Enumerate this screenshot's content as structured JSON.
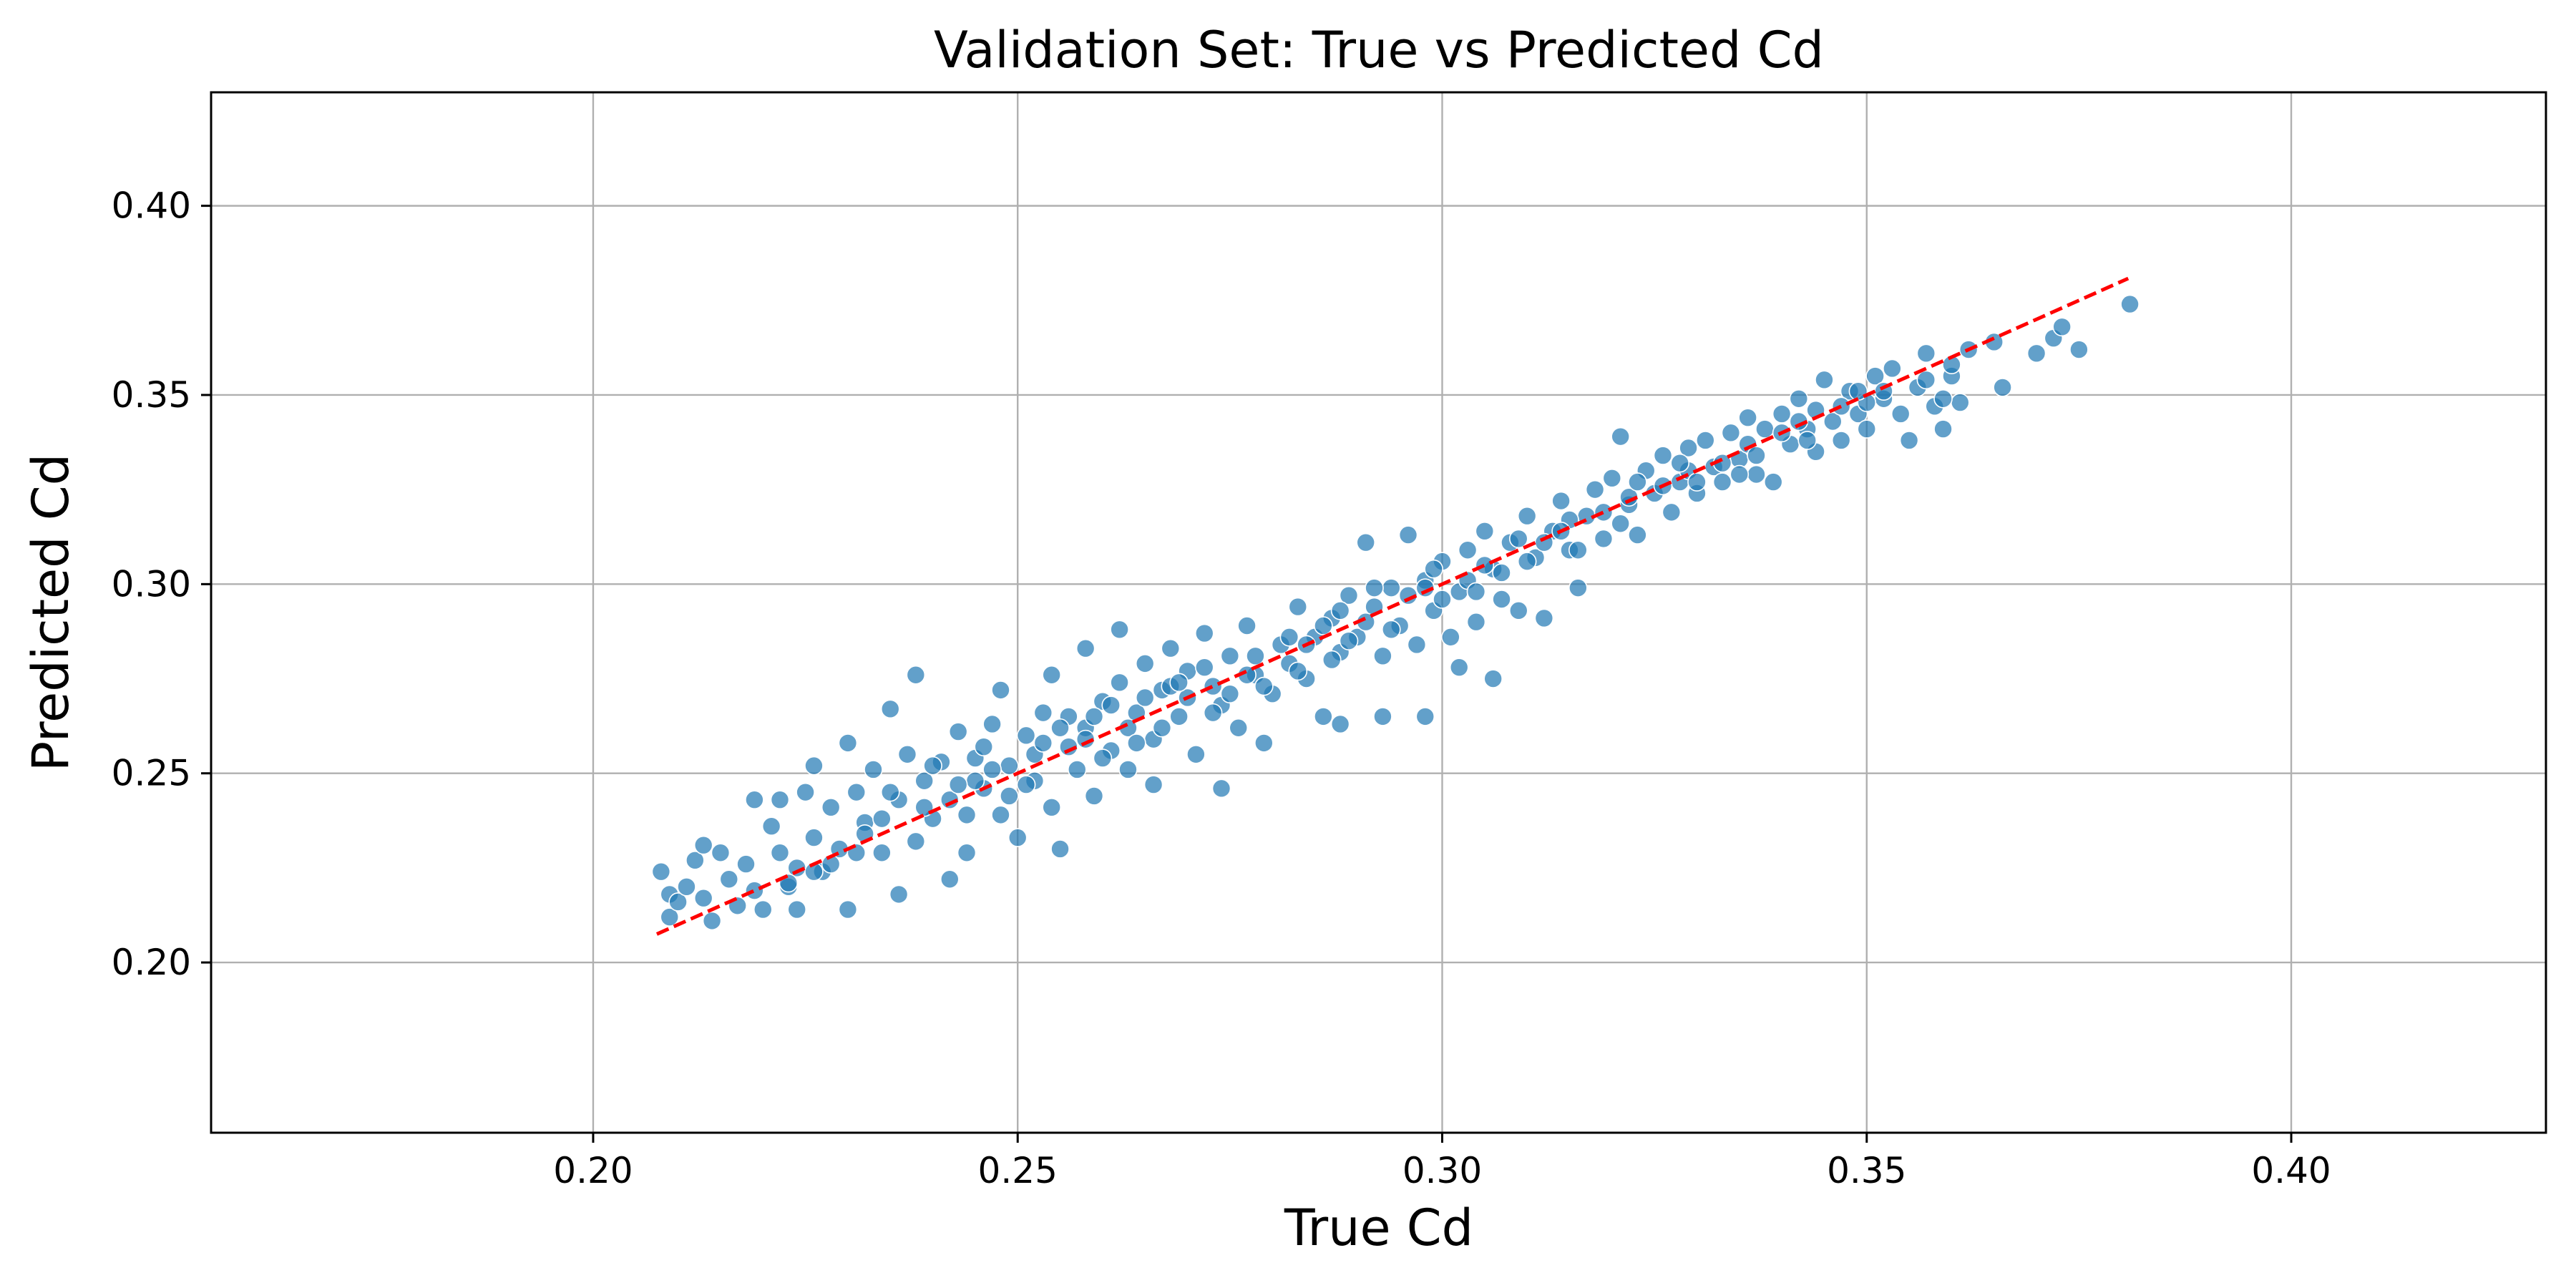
{
  "chart_data": {
    "type": "scatter",
    "title": "Validation Set: True vs Predicted Cd",
    "xlabel": "True Cd",
    "ylabel": "Predicted Cd",
    "xlim": [
      0.155,
      0.43
    ],
    "ylim": [
      0.155,
      0.43
    ],
    "xticks": [
      0.2,
      0.25,
      0.3,
      0.35,
      0.4
    ],
    "yticks": [
      0.2,
      0.25,
      0.3,
      0.35,
      0.4
    ],
    "xtick_labels": [
      "0.20",
      "0.25",
      "0.30",
      "0.35",
      "0.40"
    ],
    "ytick_labels": [
      "0.20",
      "0.25",
      "0.30",
      "0.35",
      "0.40"
    ],
    "grid": true,
    "reference_line": {
      "x": [
        0.2075,
        0.3808
      ],
      "y": [
        0.2075,
        0.3808
      ],
      "color": "#ff0000",
      "style": "dashed"
    },
    "series": [
      {
        "color": "#1f77b4",
        "points": [
          [
            0.208,
            0.224
          ],
          [
            0.209,
            0.218
          ],
          [
            0.209,
            0.212
          ],
          [
            0.21,
            0.216
          ],
          [
            0.211,
            0.22
          ],
          [
            0.212,
            0.227
          ],
          [
            0.213,
            0.231
          ],
          [
            0.213,
            0.217
          ],
          [
            0.214,
            0.211
          ],
          [
            0.215,
            0.229
          ],
          [
            0.216,
            0.222
          ],
          [
            0.217,
            0.215
          ],
          [
            0.218,
            0.226
          ],
          [
            0.219,
            0.243
          ],
          [
            0.219,
            0.219
          ],
          [
            0.22,
            0.214
          ],
          [
            0.221,
            0.236
          ],
          [
            0.222,
            0.243
          ],
          [
            0.222,
            0.229
          ],
          [
            0.223,
            0.22
          ],
          [
            0.224,
            0.225
          ],
          [
            0.224,
            0.214
          ],
          [
            0.225,
            0.245
          ],
          [
            0.226,
            0.233
          ],
          [
            0.226,
            0.252
          ],
          [
            0.227,
            0.224
          ],
          [
            0.228,
            0.241
          ],
          [
            0.229,
            0.23
          ],
          [
            0.23,
            0.214
          ],
          [
            0.23,
            0.258
          ],
          [
            0.231,
            0.245
          ],
          [
            0.232,
            0.237
          ],
          [
            0.233,
            0.251
          ],
          [
            0.234,
            0.229
          ],
          [
            0.235,
            0.267
          ],
          [
            0.236,
            0.218
          ],
          [
            0.236,
            0.243
          ],
          [
            0.237,
            0.255
          ],
          [
            0.238,
            0.276
          ],
          [
            0.238,
            0.232
          ],
          [
            0.239,
            0.248
          ],
          [
            0.24,
            0.238
          ],
          [
            0.241,
            0.253
          ],
          [
            0.242,
            0.222
          ],
          [
            0.243,
            0.261
          ],
          [
            0.244,
            0.239
          ],
          [
            0.244,
            0.229
          ],
          [
            0.245,
            0.254
          ],
          [
            0.246,
            0.246
          ],
          [
            0.247,
            0.263
          ],
          [
            0.248,
            0.239
          ],
          [
            0.248,
            0.272
          ],
          [
            0.249,
            0.252
          ],
          [
            0.25,
            0.233
          ],
          [
            0.251,
            0.26
          ],
          [
            0.252,
            0.248
          ],
          [
            0.253,
            0.266
          ],
          [
            0.254,
            0.276
          ],
          [
            0.254,
            0.241
          ],
          [
            0.255,
            0.23
          ],
          [
            0.256,
            0.257
          ],
          [
            0.257,
            0.251
          ],
          [
            0.258,
            0.283
          ],
          [
            0.258,
            0.262
          ],
          [
            0.259,
            0.244
          ],
          [
            0.26,
            0.269
          ],
          [
            0.261,
            0.256
          ],
          [
            0.262,
            0.288
          ],
          [
            0.262,
            0.274
          ],
          [
            0.263,
            0.251
          ],
          [
            0.264,
            0.266
          ],
          [
            0.265,
            0.279
          ],
          [
            0.266,
            0.259
          ],
          [
            0.266,
            0.247
          ],
          [
            0.267,
            0.272
          ],
          [
            0.268,
            0.283
          ],
          [
            0.269,
            0.265
          ],
          [
            0.27,
            0.277
          ],
          [
            0.271,
            0.255
          ],
          [
            0.272,
            0.287
          ],
          [
            0.273,
            0.273
          ],
          [
            0.274,
            0.246
          ],
          [
            0.274,
            0.268
          ],
          [
            0.275,
            0.281
          ],
          [
            0.276,
            0.262
          ],
          [
            0.277,
            0.289
          ],
          [
            0.278,
            0.276
          ],
          [
            0.279,
            0.258
          ],
          [
            0.28,
            0.271
          ],
          [
            0.281,
            0.284
          ],
          [
            0.282,
            0.279
          ],
          [
            0.283,
            0.294
          ],
          [
            0.284,
            0.275
          ],
          [
            0.285,
            0.286
          ],
          [
            0.286,
            0.265
          ],
          [
            0.287,
            0.291
          ],
          [
            0.288,
            0.263
          ],
          [
            0.288,
            0.282
          ],
          [
            0.289,
            0.297
          ],
          [
            0.29,
            0.286
          ],
          [
            0.291,
            0.311
          ],
          [
            0.292,
            0.294
          ],
          [
            0.293,
            0.265
          ],
          [
            0.293,
            0.281
          ],
          [
            0.294,
            0.299
          ],
          [
            0.295,
            0.289
          ],
          [
            0.296,
            0.313
          ],
          [
            0.297,
            0.284
          ],
          [
            0.298,
            0.265
          ],
          [
            0.298,
            0.301
          ],
          [
            0.299,
            0.293
          ],
          [
            0.3,
            0.306
          ],
          [
            0.301,
            0.286
          ],
          [
            0.302,
            0.278
          ],
          [
            0.302,
            0.298
          ],
          [
            0.303,
            0.309
          ],
          [
            0.304,
            0.29
          ],
          [
            0.305,
            0.314
          ],
          [
            0.306,
            0.275
          ],
          [
            0.306,
            0.304
          ],
          [
            0.307,
            0.296
          ],
          [
            0.308,
            0.311
          ],
          [
            0.309,
            0.293
          ],
          [
            0.31,
            0.318
          ],
          [
            0.311,
            0.307
          ],
          [
            0.312,
            0.291
          ],
          [
            0.313,
            0.314
          ],
          [
            0.314,
            0.322
          ],
          [
            0.315,
            0.309
          ],
          [
            0.316,
            0.299
          ],
          [
            0.317,
            0.318
          ],
          [
            0.318,
            0.325
          ],
          [
            0.319,
            0.312
          ],
          [
            0.32,
            0.328
          ],
          [
            0.321,
            0.339
          ],
          [
            0.322,
            0.321
          ],
          [
            0.323,
            0.313
          ],
          [
            0.324,
            0.33
          ],
          [
            0.325,
            0.324
          ],
          [
            0.326,
            0.334
          ],
          [
            0.327,
            0.319
          ],
          [
            0.328,
            0.327
          ],
          [
            0.329,
            0.336
          ],
          [
            0.33,
            0.324
          ],
          [
            0.331,
            0.338
          ],
          [
            0.332,
            0.331
          ],
          [
            0.333,
            0.327
          ],
          [
            0.334,
            0.34
          ],
          [
            0.335,
            0.333
          ],
          [
            0.336,
            0.344
          ],
          [
            0.337,
            0.329
          ],
          [
            0.338,
            0.341
          ],
          [
            0.339,
            0.327
          ],
          [
            0.34,
            0.345
          ],
          [
            0.341,
            0.337
          ],
          [
            0.342,
            0.349
          ],
          [
            0.343,
            0.341
          ],
          [
            0.344,
            0.335
          ],
          [
            0.345,
            0.354
          ],
          [
            0.346,
            0.343
          ],
          [
            0.347,
            0.338
          ],
          [
            0.348,
            0.351
          ],
          [
            0.349,
            0.345
          ],
          [
            0.35,
            0.341
          ],
          [
            0.351,
            0.355
          ],
          [
            0.352,
            0.349
          ],
          [
            0.353,
            0.357
          ],
          [
            0.354,
            0.345
          ],
          [
            0.355,
            0.338
          ],
          [
            0.356,
            0.352
          ],
          [
            0.357,
            0.361
          ],
          [
            0.358,
            0.347
          ],
          [
            0.359,
            0.341
          ],
          [
            0.36,
            0.355
          ],
          [
            0.361,
            0.348
          ],
          [
            0.362,
            0.362
          ],
          [
            0.365,
            0.364
          ],
          [
            0.366,
            0.352
          ],
          [
            0.37,
            0.361
          ],
          [
            0.372,
            0.365
          ],
          [
            0.373,
            0.368
          ],
          [
            0.375,
            0.362
          ],
          [
            0.381,
            0.374
          ],
          [
            0.256,
            0.265
          ],
          [
            0.263,
            0.262
          ],
          [
            0.27,
            0.27
          ],
          [
            0.277,
            0.276
          ],
          [
            0.284,
            0.284
          ],
          [
            0.291,
            0.29
          ],
          [
            0.298,
            0.299
          ],
          [
            0.305,
            0.305
          ],
          [
            0.312,
            0.311
          ],
          [
            0.319,
            0.319
          ],
          [
            0.326,
            0.326
          ],
          [
            0.333,
            0.332
          ],
          [
            0.34,
            0.34
          ],
          [
            0.347,
            0.347
          ],
          [
            0.24,
            0.252
          ],
          [
            0.246,
            0.257
          ],
          [
            0.252,
            0.255
          ],
          [
            0.258,
            0.259
          ],
          [
            0.261,
            0.268
          ],
          [
            0.267,
            0.262
          ],
          [
            0.272,
            0.278
          ],
          [
            0.279,
            0.273
          ],
          [
            0.286,
            0.289
          ],
          [
            0.289,
            0.285
          ],
          [
            0.296,
            0.297
          ],
          [
            0.303,
            0.301
          ],
          [
            0.31,
            0.306
          ],
          [
            0.315,
            0.317
          ],
          [
            0.322,
            0.323
          ],
          [
            0.329,
            0.33
          ],
          [
            0.336,
            0.337
          ],
          [
            0.343,
            0.338
          ],
          [
            0.35,
            0.348
          ],
          [
            0.357,
            0.354
          ],
          [
            0.228,
            0.226
          ],
          [
            0.232,
            0.234
          ],
          [
            0.234,
            0.238
          ],
          [
            0.242,
            0.243
          ],
          [
            0.245,
            0.248
          ],
          [
            0.249,
            0.244
          ],
          [
            0.253,
            0.258
          ],
          [
            0.26,
            0.254
          ],
          [
            0.265,
            0.27
          ],
          [
            0.268,
            0.273
          ],
          [
            0.275,
            0.271
          ],
          [
            0.282,
            0.286
          ],
          [
            0.287,
            0.28
          ],
          [
            0.292,
            0.299
          ],
          [
            0.3,
            0.296
          ],
          [
            0.307,
            0.303
          ],
          [
            0.314,
            0.314
          ],
          [
            0.321,
            0.316
          ],
          [
            0.328,
            0.332
          ],
          [
            0.335,
            0.329
          ],
          [
            0.342,
            0.343
          ],
          [
            0.349,
            0.351
          ],
          [
            0.359,
            0.349
          ],
          [
            0.223,
            0.221
          ],
          [
            0.226,
            0.224
          ],
          [
            0.231,
            0.229
          ],
          [
            0.235,
            0.245
          ],
          [
            0.239,
            0.241
          ],
          [
            0.243,
            0.247
          ],
          [
            0.247,
            0.251
          ],
          [
            0.251,
            0.247
          ],
          [
            0.255,
            0.262
          ],
          [
            0.259,
            0.265
          ],
          [
            0.264,
            0.258
          ],
          [
            0.269,
            0.274
          ],
          [
            0.273,
            0.266
          ],
          [
            0.278,
            0.281
          ],
          [
            0.283,
            0.277
          ],
          [
            0.288,
            0.293
          ],
          [
            0.294,
            0.288
          ],
          [
            0.299,
            0.304
          ],
          [
            0.304,
            0.298
          ],
          [
            0.309,
            0.312
          ],
          [
            0.316,
            0.309
          ],
          [
            0.323,
            0.327
          ],
          [
            0.33,
            0.327
          ],
          [
            0.337,
            0.334
          ],
          [
            0.344,
            0.346
          ],
          [
            0.352,
            0.351
          ],
          [
            0.36,
            0.358
          ]
        ]
      }
    ]
  }
}
